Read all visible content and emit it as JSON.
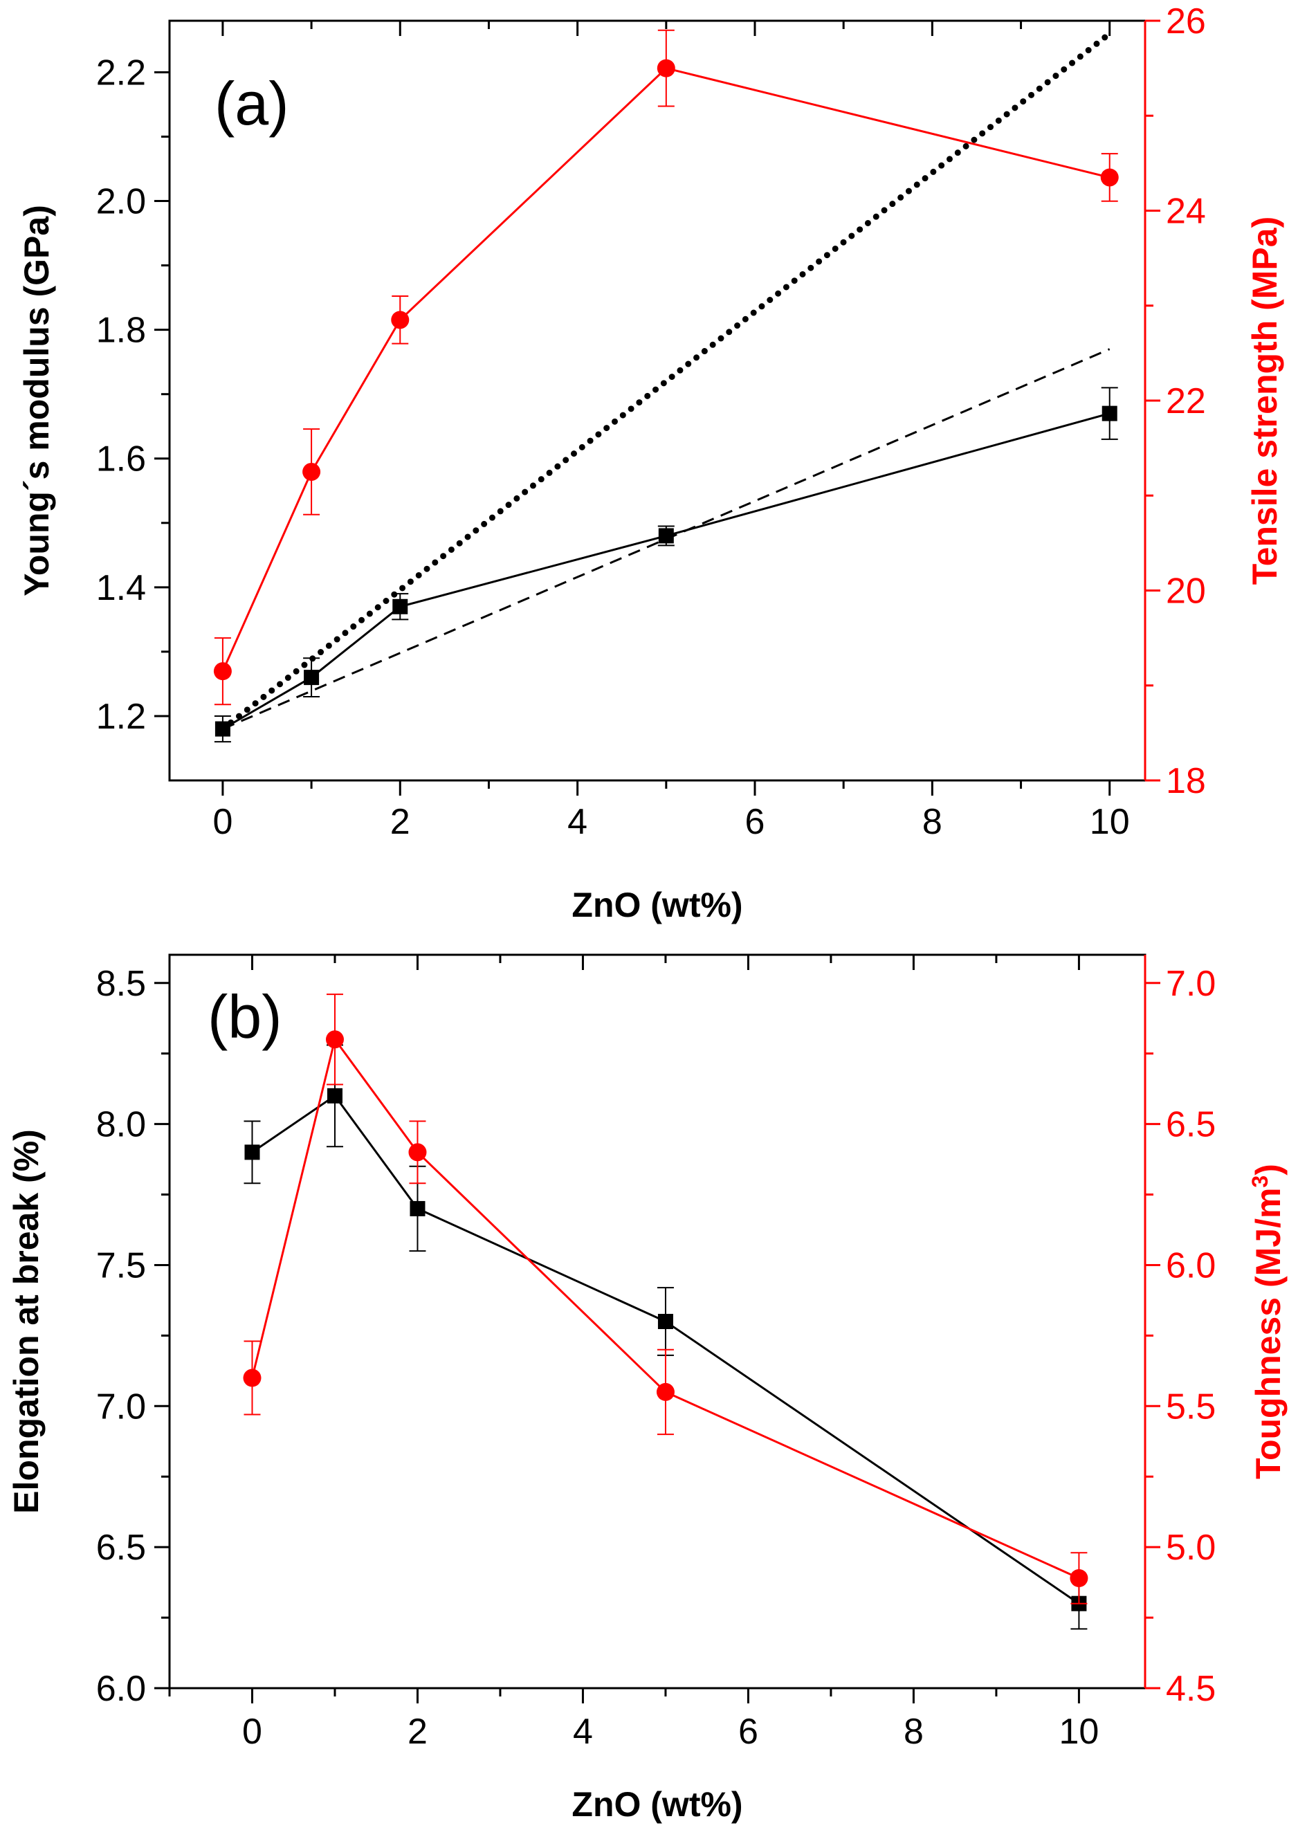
{
  "chart_data": [
    {
      "type": "line",
      "panel_label": "(a)",
      "xlabel": "ZnO (wt%)",
      "ylabel_left": "Young´s modulus (GPa)",
      "ylabel_right": "Tensile strength (MPa)",
      "xlim": [
        -0.6,
        10.4
      ],
      "xticks": [
        0,
        2,
        4,
        6,
        8,
        10
      ],
      "xtick_labels": [
        "0",
        "2",
        "4",
        "6",
        "8",
        "10"
      ],
      "ylim_left": [
        1.1,
        2.28
      ],
      "yticks_left": [
        1.2,
        1.4,
        1.6,
        1.8,
        2.0,
        2.2
      ],
      "ytick_labels_left": [
        "1.2",
        "1.4",
        "1.6",
        "1.8",
        "2.0",
        "2.2"
      ],
      "ylim_right": [
        18,
        26
      ],
      "yticks_right": [
        18,
        20,
        22,
        24,
        26
      ],
      "ytick_labels_right": [
        "18",
        "20",
        "22",
        "24",
        "26"
      ],
      "series": [
        {
          "axis": "left",
          "color": "#000000",
          "marker": "square",
          "line": "solid",
          "x": [
            0,
            1,
            2,
            5,
            10
          ],
          "y": [
            1.18,
            1.26,
            1.37,
            1.48,
            1.67
          ],
          "err": [
            0.02,
            0.03,
            0.02,
            0.015,
            0.04
          ]
        },
        {
          "axis": "right",
          "color": "#ff0000",
          "marker": "circle",
          "line": "solid",
          "x": [
            0,
            1,
            2,
            5,
            10
          ],
          "y": [
            19.15,
            21.25,
            22.85,
            25.5,
            24.35
          ],
          "err": [
            0.35,
            0.45,
            0.25,
            0.4,
            0.25
          ]
        },
        {
          "axis": "left",
          "color": "#000000",
          "marker": "none",
          "line": "dotted",
          "x": [
            0,
            10
          ],
          "y": [
            1.18,
            2.26
          ]
        },
        {
          "axis": "left",
          "color": "#000000",
          "marker": "none",
          "line": "dashed",
          "x": [
            0,
            10
          ],
          "y": [
            1.18,
            1.77
          ]
        }
      ]
    },
    {
      "type": "line",
      "panel_label": "(b)",
      "xlabel": "ZnO (wt%)",
      "ylabel_left": "Elongation at break (%)",
      "ylabel_right_main": "Toughness (MJ/m",
      "ylabel_right_sup": "3",
      "ylabel_right_close": ")",
      "xlim": [
        -1,
        10.8
      ],
      "xticks": [
        0,
        2,
        4,
        6,
        8,
        10
      ],
      "xtick_labels": [
        "0",
        "2",
        "4",
        "6",
        "8",
        "10"
      ],
      "ylim_left": [
        6.0,
        8.6
      ],
      "yticks_left": [
        6.0,
        6.5,
        7.0,
        7.5,
        8.0,
        8.5
      ],
      "ytick_labels_left": [
        "6.0",
        "6.5",
        "7.0",
        "7.5",
        "8.0",
        "8.5"
      ],
      "ylim_right": [
        4.5,
        7.1
      ],
      "yticks_right": [
        4.5,
        5.0,
        5.5,
        6.0,
        6.5,
        7.0
      ],
      "ytick_labels_right": [
        "4.5",
        "5.0",
        "5.5",
        "6.0",
        "6.5",
        "7.0"
      ],
      "series": [
        {
          "axis": "left",
          "color": "#000000",
          "marker": "square",
          "line": "solid",
          "x": [
            0,
            1,
            2,
            5,
            10
          ],
          "y": [
            7.9,
            8.1,
            7.7,
            7.3,
            6.3
          ],
          "err": [
            0.11,
            0.18,
            0.15,
            0.12,
            0.09
          ]
        },
        {
          "axis": "right",
          "color": "#ff0000",
          "marker": "circle",
          "line": "solid",
          "x": [
            0,
            1,
            2,
            5,
            10
          ],
          "y": [
            5.6,
            6.8,
            6.4,
            5.55,
            4.89
          ],
          "err": [
            0.13,
            0.16,
            0.11,
            0.15,
            0.09
          ]
        }
      ]
    }
  ]
}
